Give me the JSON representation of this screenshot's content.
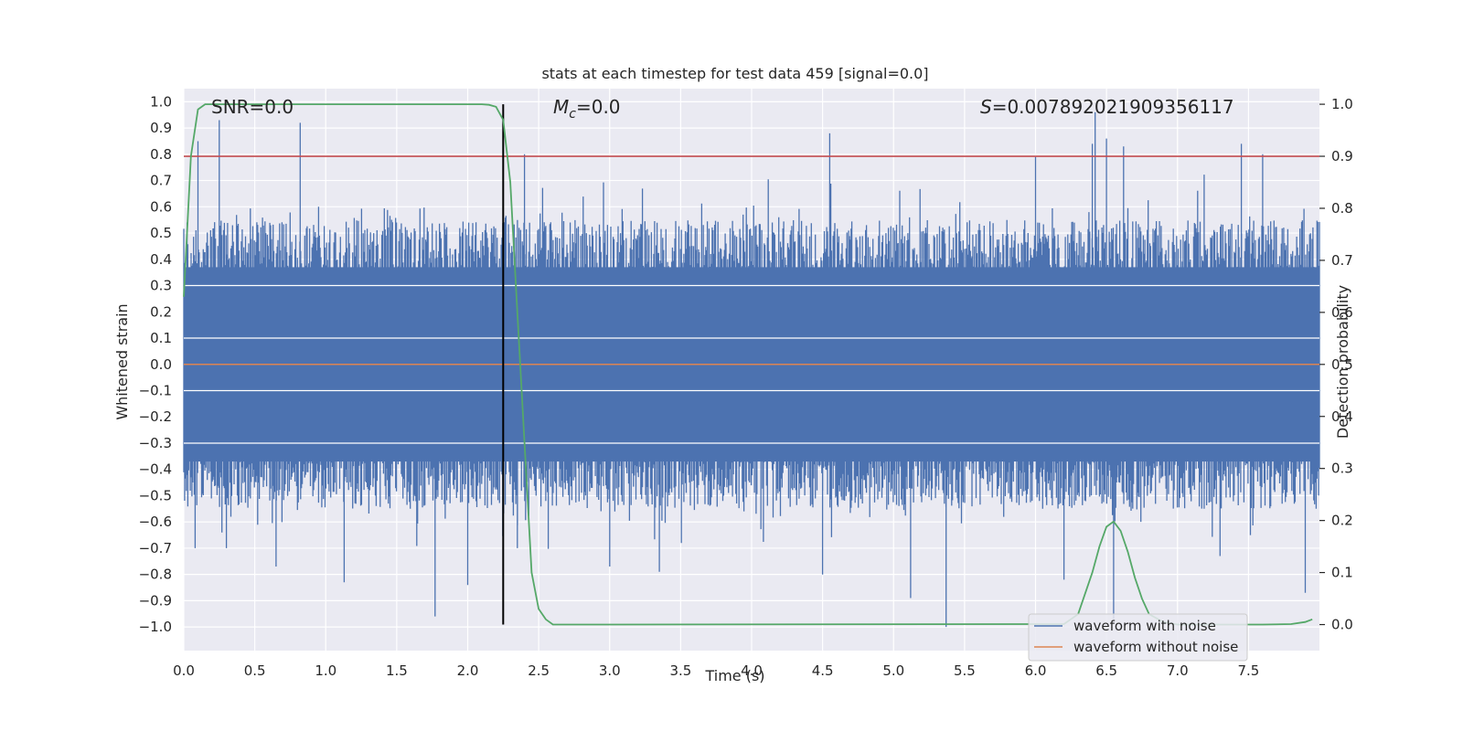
{
  "chart_data": {
    "type": "line",
    "title": "stats at each timestep for test data 459 [signal=0.0]",
    "xlabel": "Time (s)",
    "ylabel_left": "Whitened strain",
    "ylabel_right": "Detection probability",
    "xlim": [
      0.0,
      8.0
    ],
    "ylim_left": [
      -1.09,
      1.05
    ],
    "ylim_right": [
      -0.05,
      1.03
    ],
    "xticks": [
      "0.0",
      "0.5",
      "1.0",
      "1.5",
      "2.0",
      "2.5",
      "3.0",
      "3.5",
      "4.0",
      "4.5",
      "5.0",
      "5.5",
      "6.0",
      "6.5",
      "7.0",
      "7.5"
    ],
    "yticks_left": [
      "1.0",
      "0.9",
      "0.8",
      "0.7",
      "0.6",
      "0.5",
      "0.4",
      "0.3",
      "0.2",
      "0.1",
      "0.0",
      "-0.1",
      "-0.2",
      "-0.3",
      "-0.4",
      "-0.5",
      "-0.6",
      "-0.7",
      "-0.8",
      "-0.9",
      "-1.0"
    ],
    "yticks_right": [
      "1.0",
      "0.9",
      "0.8",
      "0.7",
      "0.6",
      "0.5",
      "0.4",
      "0.3",
      "0.2",
      "0.1",
      "0.0"
    ],
    "annotations": {
      "snr": "SNR=0.0",
      "mc_symbol": "M",
      "mc_sub": "c",
      "mc_value": "=0.0",
      "s_symbol": "S",
      "s_value": "=0.007892021909356117"
    },
    "threshold_line": {
      "value": 0.9,
      "axis": "right",
      "color": "#c44e52"
    },
    "marker_time": 2.25,
    "series": [
      {
        "name": "waveform with noise",
        "color": "#4c72b0",
        "axis": "left",
        "description": "dense whitened noise, |strain| mostly within 0.6, peaks near 0.95",
        "x_range": [
          0.0,
          8.0
        ],
        "envelope_upper_typical": 0.55,
        "envelope_lower_typical": -0.55,
        "peaks_upper": [
          [
            0.1,
            0.85
          ],
          [
            0.25,
            0.93
          ],
          [
            0.82,
            0.92
          ],
          [
            2.25,
            0.83
          ],
          [
            2.4,
            0.8
          ],
          [
            4.55,
            0.88
          ],
          [
            6.0,
            0.79
          ],
          [
            6.4,
            0.84
          ],
          [
            6.42,
            0.96
          ],
          [
            6.5,
            0.86
          ],
          [
            6.62,
            0.83
          ],
          [
            7.45,
            0.84
          ],
          [
            7.6,
            0.8
          ]
        ],
        "peaks_lower": [
          [
            0.08,
            -0.7
          ],
          [
            0.3,
            -0.7
          ],
          [
            0.65,
            -0.77
          ],
          [
            1.13,
            -0.83
          ],
          [
            1.77,
            -0.96
          ],
          [
            2.0,
            -0.84
          ],
          [
            2.35,
            -0.7
          ],
          [
            3.0,
            -0.77
          ],
          [
            3.35,
            -0.79
          ],
          [
            4.5,
            -0.8
          ],
          [
            5.12,
            -0.89
          ],
          [
            5.37,
            -1.0
          ],
          [
            6.2,
            -0.82
          ],
          [
            6.55,
            -0.97
          ],
          [
            7.3,
            -0.73
          ],
          [
            7.9,
            -0.87
          ]
        ]
      },
      {
        "name": "waveform without noise",
        "color": "#dd8452",
        "axis": "left",
        "x": [
          0.0,
          8.0
        ],
        "values": [
          0.0,
          0.0
        ]
      },
      {
        "name": "detection probability",
        "color": "#55a868",
        "axis": "right",
        "x": [
          0.0,
          0.05,
          0.1,
          0.15,
          0.2,
          2.0,
          2.1,
          2.15,
          2.2,
          2.25,
          2.3,
          2.35,
          2.4,
          2.45,
          2.5,
          2.55,
          2.6,
          3.0,
          6.2,
          6.3,
          6.35,
          6.4,
          6.45,
          6.5,
          6.55,
          6.6,
          6.65,
          6.7,
          6.75,
          6.8,
          6.9,
          7.0,
          7.6,
          7.8,
          7.9,
          7.95
        ],
        "values": [
          0.63,
          0.9,
          0.99,
          1.0,
          1.0,
          1.0,
          1.0,
          0.999,
          0.995,
          0.97,
          0.85,
          0.6,
          0.35,
          0.1,
          0.03,
          0.01,
          0.0,
          0.0,
          0.001,
          0.02,
          0.06,
          0.1,
          0.15,
          0.188,
          0.198,
          0.18,
          0.14,
          0.09,
          0.05,
          0.02,
          0.005,
          0.0,
          0.0,
          0.001,
          0.005,
          0.01
        ]
      }
    ],
    "legend": {
      "placement": "lower-right",
      "entries": [
        {
          "label": "waveform with noise",
          "color": "#4c72b0"
        },
        {
          "label": "waveform without noise",
          "color": "#dd8452"
        }
      ]
    }
  }
}
